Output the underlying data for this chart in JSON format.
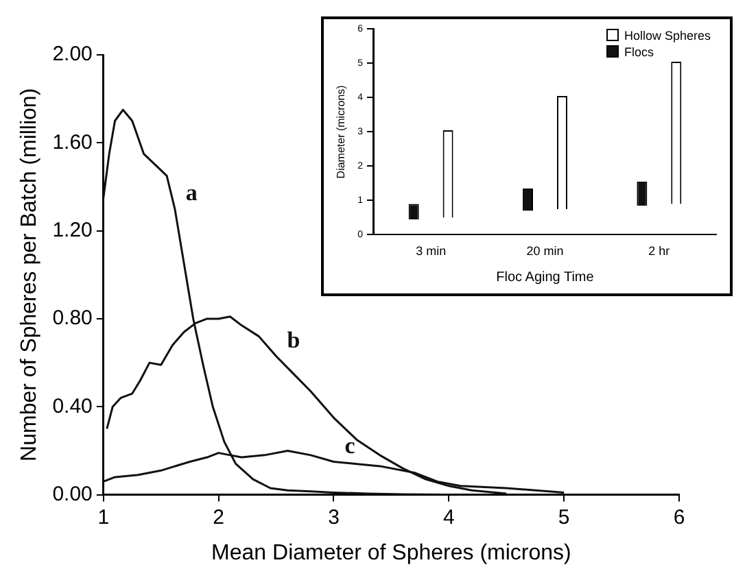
{
  "chart_data": [
    {
      "type": "line",
      "xlabel": "Mean Diameter of Spheres (microns)",
      "ylabel": "Number of Spheres per Batch (million)",
      "xlim": [
        1,
        6
      ],
      "xticks": [
        1,
        2,
        3,
        4,
        5,
        6
      ],
      "ylim": [
        0,
        2
      ],
      "yticks": [
        {
          "value": 0,
          "label": "0.00"
        },
        {
          "value": 0.4,
          "label": "0.40"
        },
        {
          "value": 0.8,
          "label": "0.80"
        },
        {
          "value": 1.2,
          "label": "1.20"
        },
        {
          "value": 1.6,
          "label": "1.60"
        },
        {
          "value": 2,
          "label": "2.00"
        }
      ],
      "grid": false,
      "legend": false,
      "marker": "none",
      "line_style": "solid",
      "series": [
        {
          "name": "a",
          "color": "#111111",
          "x": [
            1.0,
            1.05,
            1.1,
            1.17,
            1.25,
            1.35,
            1.45,
            1.55,
            1.62,
            1.7,
            1.78,
            1.87,
            1.95,
            2.05,
            2.15,
            2.3,
            2.45,
            2.6,
            2.8,
            3.0,
            3.3,
            3.6,
            4.0
          ],
          "values": [
            1.35,
            1.55,
            1.7,
            1.75,
            1.7,
            1.55,
            1.5,
            1.45,
            1.3,
            1.05,
            0.8,
            0.58,
            0.4,
            0.24,
            0.14,
            0.07,
            0.03,
            0.02,
            0.015,
            0.01,
            0.005,
            0.002,
            0
          ]
        },
        {
          "name": "b",
          "color": "#111111",
          "x": [
            1.03,
            1.08,
            1.15,
            1.25,
            1.32,
            1.4,
            1.5,
            1.6,
            1.7,
            1.8,
            1.9,
            2.0,
            2.1,
            2.2,
            2.35,
            2.5,
            2.65,
            2.8,
            3.0,
            3.2,
            3.4,
            3.6,
            3.8,
            4.0,
            4.2,
            4.5
          ],
          "values": [
            0.3,
            0.4,
            0.44,
            0.46,
            0.52,
            0.6,
            0.59,
            0.68,
            0.74,
            0.78,
            0.8,
            0.8,
            0.81,
            0.77,
            0.72,
            0.63,
            0.55,
            0.47,
            0.35,
            0.25,
            0.18,
            0.12,
            0.07,
            0.04,
            0.02,
            0.005
          ]
        },
        {
          "name": "c",
          "color": "#111111",
          "x": [
            1.0,
            1.1,
            1.3,
            1.5,
            1.75,
            1.9,
            2.0,
            2.1,
            2.2,
            2.4,
            2.6,
            2.8,
            3.0,
            3.2,
            3.4,
            3.7,
            3.9,
            4.1,
            4.5,
            5.0
          ],
          "values": [
            0.06,
            0.08,
            0.09,
            0.11,
            0.15,
            0.17,
            0.19,
            0.18,
            0.17,
            0.18,
            0.2,
            0.18,
            0.15,
            0.14,
            0.13,
            0.1,
            0.06,
            0.04,
            0.03,
            0.01
          ]
        }
      ]
    },
    {
      "type": "bar",
      "xlabel": "Floc Aging Time",
      "ylabel": "Diameter (microns)",
      "categories": [
        "3 min",
        "20 min",
        "2 hr"
      ],
      "ylim": [
        0,
        6
      ],
      "yticks": [
        0,
        1,
        2,
        3,
        4,
        5,
        6
      ],
      "grid": false,
      "legend": "top right",
      "series": [
        {
          "name": "Flocs",
          "color": "#111111",
          "base": [
            0.45,
            0.7,
            0.85
          ],
          "values": [
            0.45,
            0.65,
            0.7
          ]
        },
        {
          "name": "Hollow Spheres",
          "color": "#ffffff",
          "base": [
            0.5,
            0.75,
            0.9
          ],
          "values": [
            2.55,
            3.3,
            4.15
          ]
        }
      ]
    }
  ]
}
